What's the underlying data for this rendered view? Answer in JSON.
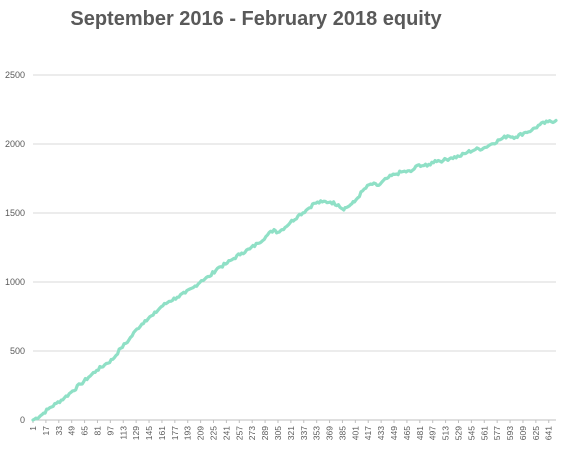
{
  "chart_data": {
    "type": "line",
    "title": "September 2016 - February 2018 equity",
    "xlabel": "",
    "ylabel": "",
    "x_range": [
      1,
      650
    ],
    "ylim": [
      0,
      2500
    ],
    "y_ticks": [
      0,
      500,
      1000,
      1500,
      2000,
      2500
    ],
    "x_tick_labels": [
      1,
      17,
      33,
      49,
      65,
      81,
      97,
      113,
      129,
      145,
      161,
      177,
      193,
      209,
      225,
      241,
      257,
      273,
      289,
      305,
      321,
      337,
      353,
      369,
      385,
      401,
      417,
      433,
      449,
      465,
      481,
      497,
      513,
      529,
      545,
      561,
      577,
      593,
      609,
      625,
      641
    ],
    "grid": "horizontal",
    "legend": "none",
    "line_color": "#8fe0c6",
    "series": [
      {
        "x": [
          1,
          10,
          20,
          30,
          40,
          50,
          60,
          70,
          80,
          90,
          100,
          110,
          120,
          130,
          140,
          150,
          160,
          170,
          180,
          190,
          200,
          210,
          220,
          230,
          240,
          250,
          260,
          270,
          280,
          290,
          300,
          305,
          310,
          320,
          330,
          340,
          350,
          360,
          370,
          380,
          385,
          390,
          395,
          400,
          410,
          420,
          430,
          440,
          450,
          460,
          470,
          480,
          490,
          500,
          510,
          520,
          530,
          540,
          550,
          560,
          570,
          580,
          590,
          600,
          610,
          620,
          630,
          640,
          650
        ],
        "values": [
          0,
          30,
          80,
          120,
          160,
          210,
          260,
          310,
          360,
          400,
          440,
          520,
          580,
          660,
          720,
          760,
          820,
          860,
          890,
          920,
          960,
          1010,
          1040,
          1100,
          1130,
          1170,
          1210,
          1240,
          1280,
          1330,
          1380,
          1360,
          1380,
          1430,
          1480,
          1520,
          1570,
          1580,
          1580,
          1560,
          1530,
          1540,
          1560,
          1580,
          1660,
          1710,
          1700,
          1750,
          1780,
          1800,
          1800,
          1850,
          1840,
          1880,
          1880,
          1900,
          1910,
          1940,
          1960,
          1970,
          2000,
          2030,
          2060,
          2050,
          2080,
          2100,
          2140,
          2160,
          2170
        ]
      }
    ]
  }
}
